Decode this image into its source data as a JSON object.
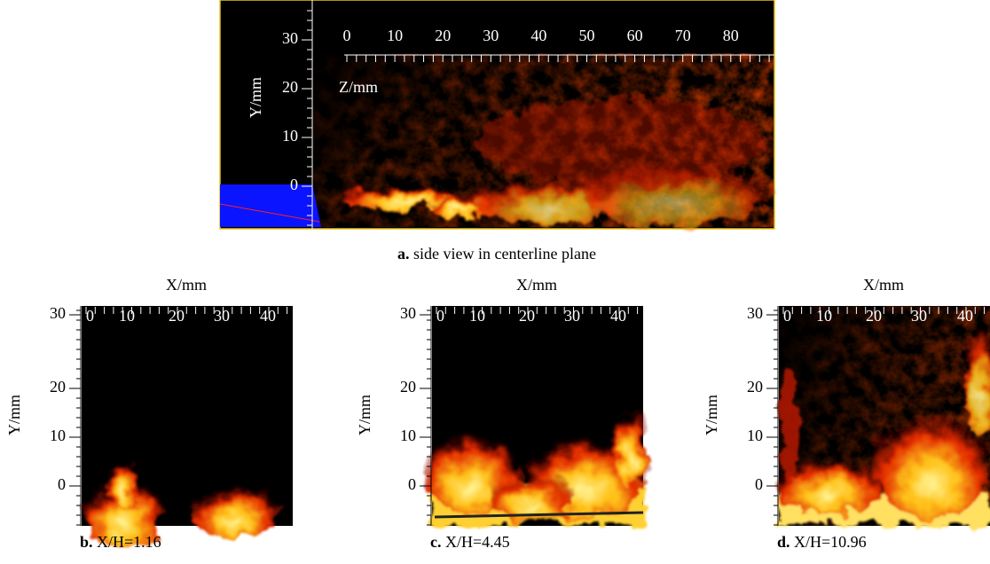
{
  "panel_a": {
    "caption_label": "a.",
    "caption": "side view in centerline plane",
    "y_axis_label": "Y/mm",
    "x_axis_label": "Z/mm",
    "y_ticks": [
      30,
      20,
      10,
      0
    ],
    "x_ticks": [
      0,
      10,
      20,
      30,
      40,
      50,
      60,
      70,
      80
    ]
  },
  "panels": [
    {
      "x_axis_label": "X/mm",
      "y_axis_label": "Y/mm",
      "x_ticks": [
        0,
        10,
        20,
        30,
        40
      ],
      "y_ticks": [
        30,
        20,
        10,
        0
      ],
      "caption_label": "b.",
      "caption": "X/H=1.16"
    },
    {
      "x_axis_label": "X/mm",
      "y_axis_label": "Y/mm",
      "x_ticks": [
        0,
        10,
        20,
        30,
        40
      ],
      "y_ticks": [
        30,
        20,
        10,
        0
      ],
      "caption_label": "c.",
      "caption": "X/H=4.45"
    },
    {
      "x_axis_label": "X/mm",
      "y_axis_label": "Y/mm",
      "x_ticks": [
        0,
        10,
        20,
        30,
        40
      ],
      "y_ticks": [
        30,
        20,
        10,
        0
      ],
      "caption_label": "d.",
      "caption": "X/H=10.96"
    }
  ]
}
